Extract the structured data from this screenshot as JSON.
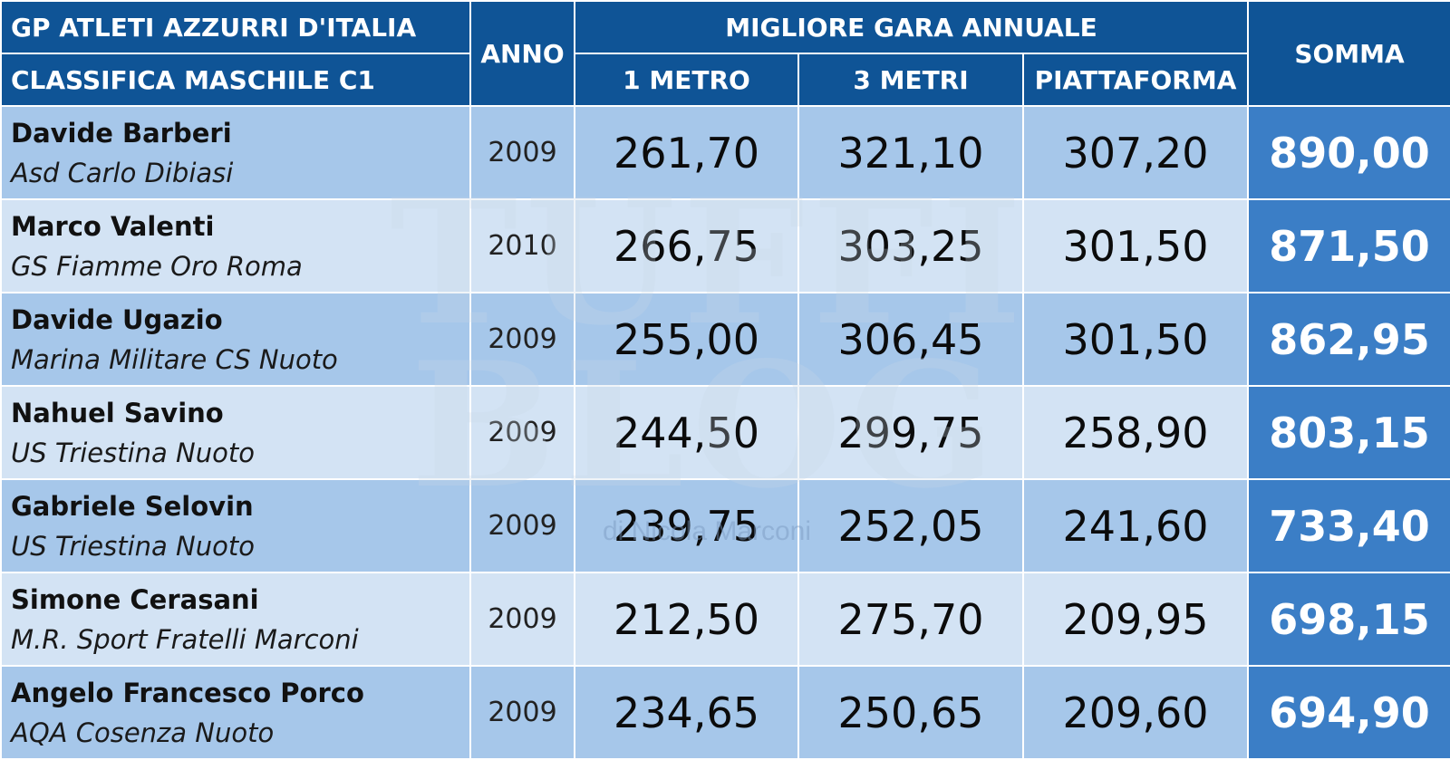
{
  "header": {
    "title_line1": "GP ATLETI AZZURRI D'ITALIA",
    "title_line2": "CLASSIFICA MASCHILE C1",
    "anno": "ANNO",
    "group": "MIGLIORE GARA ANNUALE",
    "col_1m": "1 METRO",
    "col_3m": "3 METRI",
    "col_piatt": "PIATTAFORMA",
    "somma": "SOMMA"
  },
  "rows": [
    {
      "athlete": "Davide Barberi",
      "club": "Asd Carlo Dibiasi",
      "year": "2009",
      "m1": "261,70",
      "m3": "321,10",
      "platform": "307,20",
      "sum": "890,00"
    },
    {
      "athlete": "Marco Valenti",
      "club": "GS Fiamme Oro Roma",
      "year": "2010",
      "m1": "266,75",
      "m3": "303,25",
      "platform": "301,50",
      "sum": "871,50"
    },
    {
      "athlete": "Davide Ugazio",
      "club": "Marina Militare CS Nuoto",
      "year": "2009",
      "m1": "255,00",
      "m3": "306,45",
      "platform": "301,50",
      "sum": "862,95"
    },
    {
      "athlete": "Nahuel Savino",
      "club": "US Triestina Nuoto",
      "year": "2009",
      "m1": "244,50",
      "m3": "299,75",
      "platform": "258,90",
      "sum": "803,15"
    },
    {
      "athlete": "Gabriele Selovin",
      "club": "US Triestina Nuoto",
      "year": "2009",
      "m1": "239,75",
      "m3": "252,05",
      "platform": "241,60",
      "sum": "733,40"
    },
    {
      "athlete": "Simone Cerasani",
      "club": "M.R. Sport Fratelli Marconi",
      "year": "2009",
      "m1": "212,50",
      "m3": "275,70",
      "platform": "209,95",
      "sum": "698,15"
    },
    {
      "athlete": "Angelo Francesco Porco",
      "club": "AQA Cosenza Nuoto",
      "year": "2009",
      "m1": "234,65",
      "m3": "250,65",
      "platform": "209,60",
      "sum": "694,90"
    }
  ],
  "watermark": {
    "logo_text": "TUFFI BLOG",
    "byline": "di Nicola Marconi"
  },
  "colors": {
    "header_bg": "#0f5496",
    "row_dark": "#a6c7ea",
    "row_light": "#d3e3f4",
    "sum_bg": "#3b7ec6"
  }
}
